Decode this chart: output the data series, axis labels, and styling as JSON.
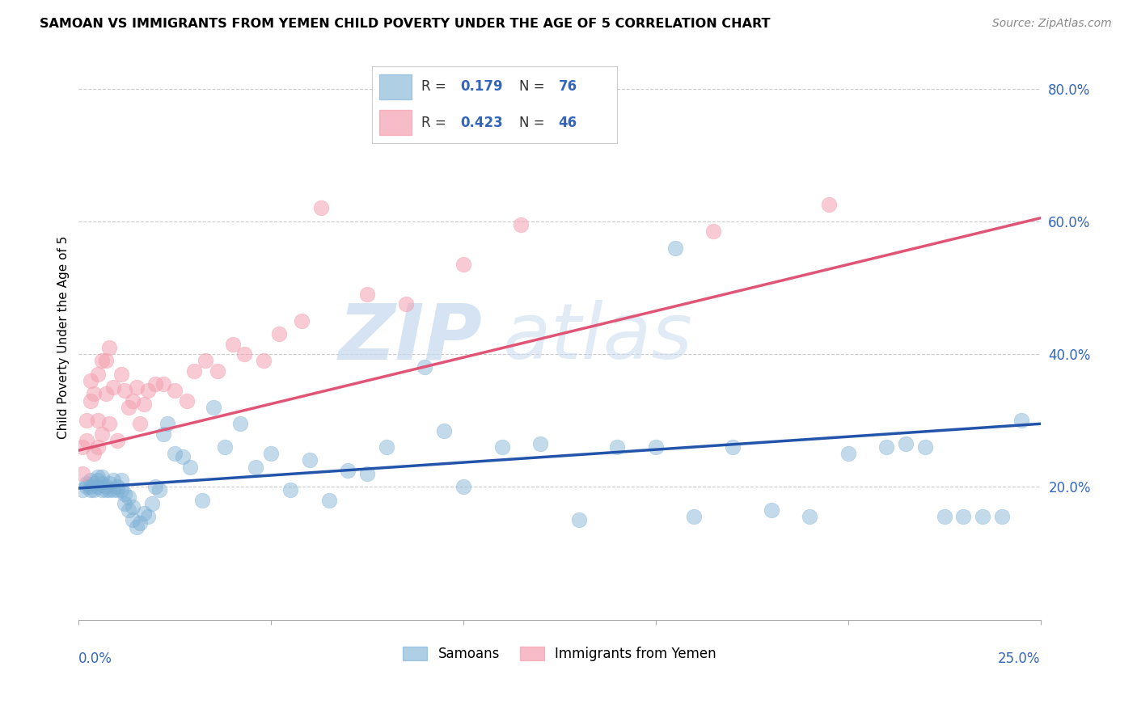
{
  "title": "SAMOAN VS IMMIGRANTS FROM YEMEN CHILD POVERTY UNDER THE AGE OF 5 CORRELATION CHART",
  "source": "Source: ZipAtlas.com",
  "ylabel": "Child Poverty Under the Age of 5",
  "x_min": 0.0,
  "x_max": 0.25,
  "y_min": 0.0,
  "y_max": 0.85,
  "y_ticks": [
    0.2,
    0.4,
    0.6,
    0.8
  ],
  "y_tick_labels": [
    "20.0%",
    "40.0%",
    "60.0%",
    "80.0%"
  ],
  "x_ticks": [
    0.0,
    0.05,
    0.1,
    0.15,
    0.2,
    0.25
  ],
  "blue_color": "#7bafd4",
  "pink_color": "#f4a0b0",
  "blue_line_color": "#2255aa",
  "pink_line_color": "#e05575",
  "blue_tick_color": "#3366bb",
  "watermark_text": "ZIP",
  "watermark_text2": "atlas",
  "legend_r1": "R = ",
  "legend_v1": "0.179",
  "legend_n1": "N = ",
  "legend_nv1": "76",
  "legend_r2": "R = ",
  "legend_v2": "0.423",
  "legend_n2": "N = ",
  "legend_nv2": "46",
  "samoans_label": "Samoans",
  "yemen_label": "Immigrants from Yemen",
  "samoans_x": [
    0.001,
    0.002,
    0.002,
    0.003,
    0.003,
    0.003,
    0.004,
    0.004,
    0.005,
    0.005,
    0.005,
    0.006,
    0.006,
    0.006,
    0.007,
    0.007,
    0.008,
    0.008,
    0.009,
    0.009,
    0.01,
    0.01,
    0.011,
    0.011,
    0.012,
    0.012,
    0.013,
    0.013,
    0.014,
    0.014,
    0.015,
    0.016,
    0.017,
    0.018,
    0.019,
    0.02,
    0.021,
    0.022,
    0.023,
    0.025,
    0.027,
    0.029,
    0.032,
    0.035,
    0.038,
    0.042,
    0.046,
    0.05,
    0.055,
    0.06,
    0.065,
    0.07,
    0.075,
    0.08,
    0.09,
    0.095,
    0.1,
    0.11,
    0.12,
    0.13,
    0.14,
    0.15,
    0.155,
    0.16,
    0.17,
    0.18,
    0.19,
    0.2,
    0.21,
    0.215,
    0.22,
    0.225,
    0.23,
    0.235,
    0.24,
    0.245
  ],
  "samoans_y": [
    0.195,
    0.2,
    0.205,
    0.195,
    0.2,
    0.21,
    0.195,
    0.205,
    0.2,
    0.21,
    0.215,
    0.195,
    0.205,
    0.215,
    0.195,
    0.2,
    0.195,
    0.205,
    0.195,
    0.21,
    0.195,
    0.2,
    0.195,
    0.21,
    0.175,
    0.19,
    0.165,
    0.185,
    0.15,
    0.17,
    0.14,
    0.145,
    0.16,
    0.155,
    0.175,
    0.2,
    0.195,
    0.28,
    0.295,
    0.25,
    0.245,
    0.23,
    0.18,
    0.32,
    0.26,
    0.295,
    0.23,
    0.25,
    0.195,
    0.24,
    0.18,
    0.225,
    0.22,
    0.26,
    0.38,
    0.285,
    0.2,
    0.26,
    0.265,
    0.15,
    0.26,
    0.26,
    0.56,
    0.155,
    0.26,
    0.165,
    0.155,
    0.25,
    0.26,
    0.265,
    0.26,
    0.155,
    0.155,
    0.155,
    0.155,
    0.3
  ],
  "yemen_x": [
    0.001,
    0.001,
    0.002,
    0.002,
    0.003,
    0.003,
    0.004,
    0.004,
    0.005,
    0.005,
    0.005,
    0.006,
    0.006,
    0.007,
    0.007,
    0.008,
    0.008,
    0.009,
    0.01,
    0.011,
    0.012,
    0.013,
    0.014,
    0.015,
    0.016,
    0.017,
    0.018,
    0.02,
    0.022,
    0.025,
    0.028,
    0.03,
    0.033,
    0.036,
    0.04,
    0.043,
    0.048,
    0.052,
    0.058,
    0.063,
    0.075,
    0.085,
    0.1,
    0.115,
    0.165,
    0.195
  ],
  "yemen_y": [
    0.22,
    0.26,
    0.27,
    0.3,
    0.33,
    0.36,
    0.25,
    0.34,
    0.26,
    0.3,
    0.37,
    0.28,
    0.39,
    0.34,
    0.39,
    0.295,
    0.41,
    0.35,
    0.27,
    0.37,
    0.345,
    0.32,
    0.33,
    0.35,
    0.295,
    0.325,
    0.345,
    0.355,
    0.355,
    0.345,
    0.33,
    0.375,
    0.39,
    0.375,
    0.415,
    0.4,
    0.39,
    0.43,
    0.45,
    0.62,
    0.49,
    0.475,
    0.535,
    0.595,
    0.585,
    0.625
  ],
  "blue_line_y0": 0.198,
  "blue_line_y1": 0.295,
  "pink_line_y0": 0.255,
  "pink_line_y1": 0.605
}
